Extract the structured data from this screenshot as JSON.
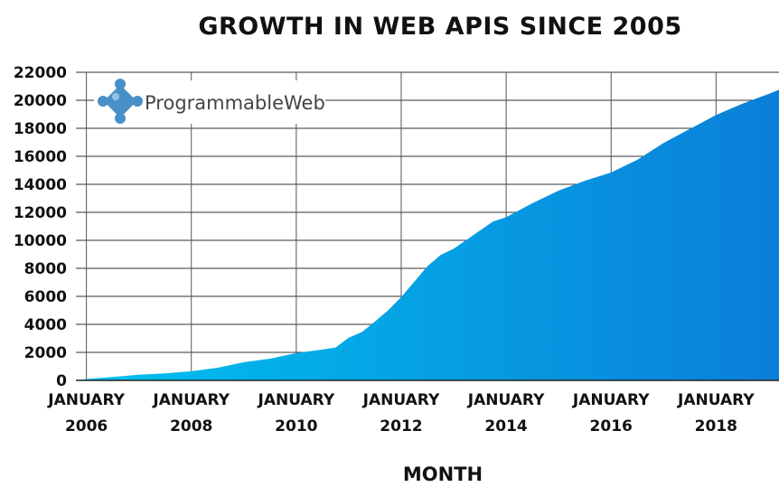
{
  "colors": {
    "area_start": "#00c2ef",
    "area_end": "#0a7fd8",
    "grid": "#333333",
    "text": "#111111",
    "logo_piece": "#4a90c8"
  },
  "logo": {
    "text": "ProgrammableWeb",
    "icon": "puzzle-piece-icon"
  },
  "chart_data": {
    "type": "area",
    "title": "GROWTH IN WEB APIS SINCE 2005",
    "xlabel": "MONTH",
    "ylabel": "",
    "ylim": [
      0,
      22000
    ],
    "xlim": [
      2005.8,
      2019.2
    ],
    "grid": {
      "horizontal": true,
      "vertical": true
    },
    "legend": "none",
    "y_ticks": [
      0,
      2000,
      4000,
      6000,
      8000,
      10000,
      12000,
      14000,
      16000,
      18000,
      20000,
      22000
    ],
    "y_tick_labels": [
      "0",
      "2000",
      "4000",
      "6000",
      "8000",
      "10000",
      "12000",
      "14000",
      "16000",
      "18000",
      "20000",
      "22000"
    ],
    "x_ticks": [
      {
        "value": 2006,
        "line1": "JANUARY",
        "line2": "2006"
      },
      {
        "value": 2008,
        "line1": "JANUARY",
        "line2": "2008"
      },
      {
        "value": 2010,
        "line1": "JANUARY",
        "line2": "2010"
      },
      {
        "value": 2012,
        "line1": "JANUARY",
        "line2": "2012"
      },
      {
        "value": 2014,
        "line1": "JANUARY",
        "line2": "2014"
      },
      {
        "value": 2016,
        "line1": "JANUARY",
        "line2": "2016"
      },
      {
        "value": 2018,
        "line1": "JANUARY",
        "line2": "2018"
      }
    ],
    "series": [
      {
        "x": [
          2005.8,
          2006.0,
          2006.5,
          2007.0,
          2007.5,
          2008.0,
          2008.5,
          2009.0,
          2009.5,
          2010.0,
          2010.5,
          2010.75,
          2011.0,
          2011.25,
          2011.5,
          2011.75,
          2012.0,
          2012.25,
          2012.5,
          2012.75,
          2013.0,
          2013.25,
          2013.5,
          2013.75,
          2014.0,
          2014.5,
          2015.0,
          2015.5,
          2016.0,
          2016.5,
          2017.0,
          2017.5,
          2018.0,
          2018.5,
          2019.0,
          2019.2
        ],
        "values": [
          0,
          100,
          250,
          400,
          500,
          650,
          900,
          1300,
          1550,
          1950,
          2200,
          2350,
          3050,
          3450,
          4200,
          5000,
          5950,
          7050,
          8150,
          8950,
          9400,
          10050,
          10700,
          11350,
          11650,
          12650,
          13550,
          14250,
          14850,
          15750,
          16950,
          17950,
          18950,
          19750,
          20450,
          20750
        ]
      }
    ]
  }
}
